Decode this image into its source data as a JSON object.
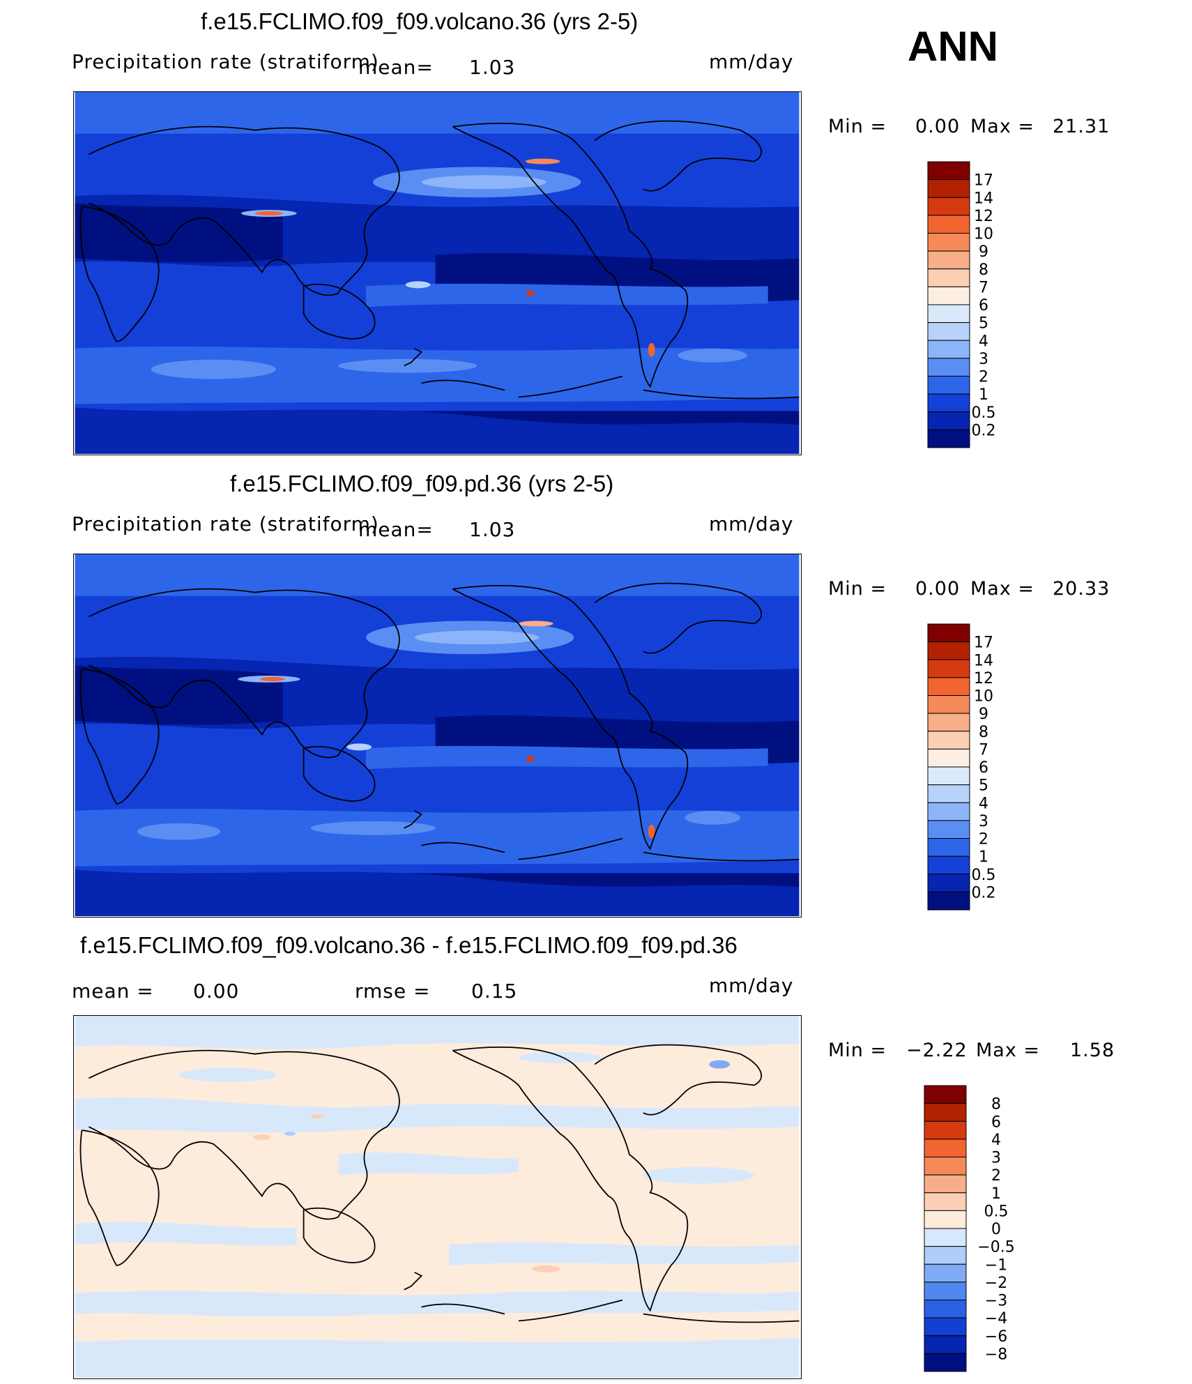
{
  "season": "ANN",
  "panels": [
    {
      "title": "f.e15.FCLIMO.f09_f09.volcano.36 (yrs 2-5)",
      "variable": "Precipitation rate (stratiform)",
      "mean_label": "mean=",
      "mean_value": "1.03",
      "units": "mm/day",
      "min_label": "Min =",
      "min_value": "0.00",
      "max_label": "Max =",
      "max_value": "21.31",
      "colorbar": {
        "labels": [
          "17",
          "14",
          "12",
          "10",
          "9",
          "8",
          "7",
          "6",
          "5",
          "4",
          "3",
          "2",
          "1",
          "0.5",
          "0.2"
        ],
        "colors": [
          "#800000",
          "#b22200",
          "#d63a10",
          "#f26430",
          "#f58a58",
          "#f8ae88",
          "#fbd0b4",
          "#fceee2",
          "#dbeafb",
          "#b8d2fa",
          "#8cb4f8",
          "#5a8ef2",
          "#2e66ea",
          "#1440d8",
          "#0625b0",
          "#001080"
        ]
      }
    },
    {
      "title": "f.e15.FCLIMO.f09_f09.pd.36 (yrs 2-5)",
      "variable": "Precipitation rate (stratiform)",
      "mean_label": "mean=",
      "mean_value": "1.03",
      "units": "mm/day",
      "min_label": "Min =",
      "min_value": "0.00",
      "max_label": "Max =",
      "max_value": "20.33",
      "colorbar": {
        "labels": [
          "17",
          "14",
          "12",
          "10",
          "9",
          "8",
          "7",
          "6",
          "5",
          "4",
          "3",
          "2",
          "1",
          "0.5",
          "0.2"
        ],
        "colors": [
          "#800000",
          "#b22200",
          "#d63a10",
          "#f26430",
          "#f58a58",
          "#f8ae88",
          "#fbd0b4",
          "#fceee2",
          "#dbeafb",
          "#b8d2fa",
          "#8cb4f8",
          "#5a8ef2",
          "#2e66ea",
          "#1440d8",
          "#0625b0",
          "#001080"
        ]
      }
    },
    {
      "title": "f.e15.FCLIMO.f09_f09.volcano.36 - f.e15.FCLIMO.f09_f09.pd.36",
      "mean_label": "mean =",
      "mean_value": "0.00",
      "rmse_label": "rmse =",
      "rmse_value": "0.15",
      "units": "mm/day",
      "min_label": "Min =",
      "min_value": "−2.22",
      "max_label": "Max =",
      "max_value": "1.58",
      "colorbar": {
        "labels": [
          "8",
          "6",
          "4",
          "3",
          "2",
          "1",
          "0.5",
          "0",
          "−0.5",
          "−1",
          "−2",
          "−3",
          "−4",
          "−6",
          "−8"
        ],
        "colors": [
          "#800000",
          "#b22200",
          "#d63a10",
          "#f26430",
          "#f58a58",
          "#f8ae88",
          "#fbd0b4",
          "#fdebdc",
          "#d8e8fb",
          "#b0ccf8",
          "#80aaf4",
          "#5088ee",
          "#2a62e6",
          "#1240d2",
          "#0625b0",
          "#001080"
        ]
      }
    }
  ]
}
